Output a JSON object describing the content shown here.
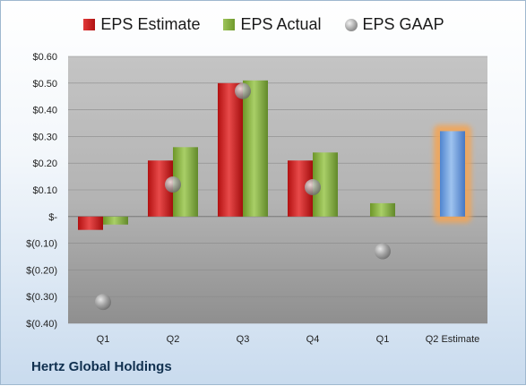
{
  "company_name": "Hertz Global Holdings",
  "chart_data": {
    "type": "bar",
    "categories": [
      "Q1",
      "Q2",
      "Q3",
      "Q4",
      "Q1",
      "Q2 Estimate"
    ],
    "series": [
      {
        "name": "EPS Estimate",
        "type": "bar",
        "color": "#c8201f",
        "values": [
          -0.05,
          0.21,
          0.5,
          0.21,
          null,
          null
        ]
      },
      {
        "name": "EPS Actual",
        "type": "bar",
        "color": "#86ad44",
        "values": [
          -0.03,
          0.26,
          0.51,
          0.24,
          0.05,
          null
        ]
      },
      {
        "name": "EPS GAAP",
        "type": "scatter",
        "color": "#8e8e8e",
        "values": [
          -0.32,
          0.12,
          0.47,
          0.11,
          -0.13,
          null
        ]
      },
      {
        "name": "Q2 Estimate",
        "type": "bar",
        "color": "#6a9ad8",
        "highlight": "#f4a452",
        "values": [
          null,
          null,
          null,
          null,
          null,
          0.32
        ]
      }
    ],
    "y_ticks": [
      "$0.60",
      "$0.50",
      "$0.40",
      "$0.30",
      "$0.20",
      "$0.10",
      "$-",
      "$(0.10)",
      "$(0.20)",
      "$(0.30)",
      "$(0.40)"
    ],
    "ylim": [
      -0.4,
      0.6
    ],
    "grid": true,
    "legend_position": "top"
  }
}
